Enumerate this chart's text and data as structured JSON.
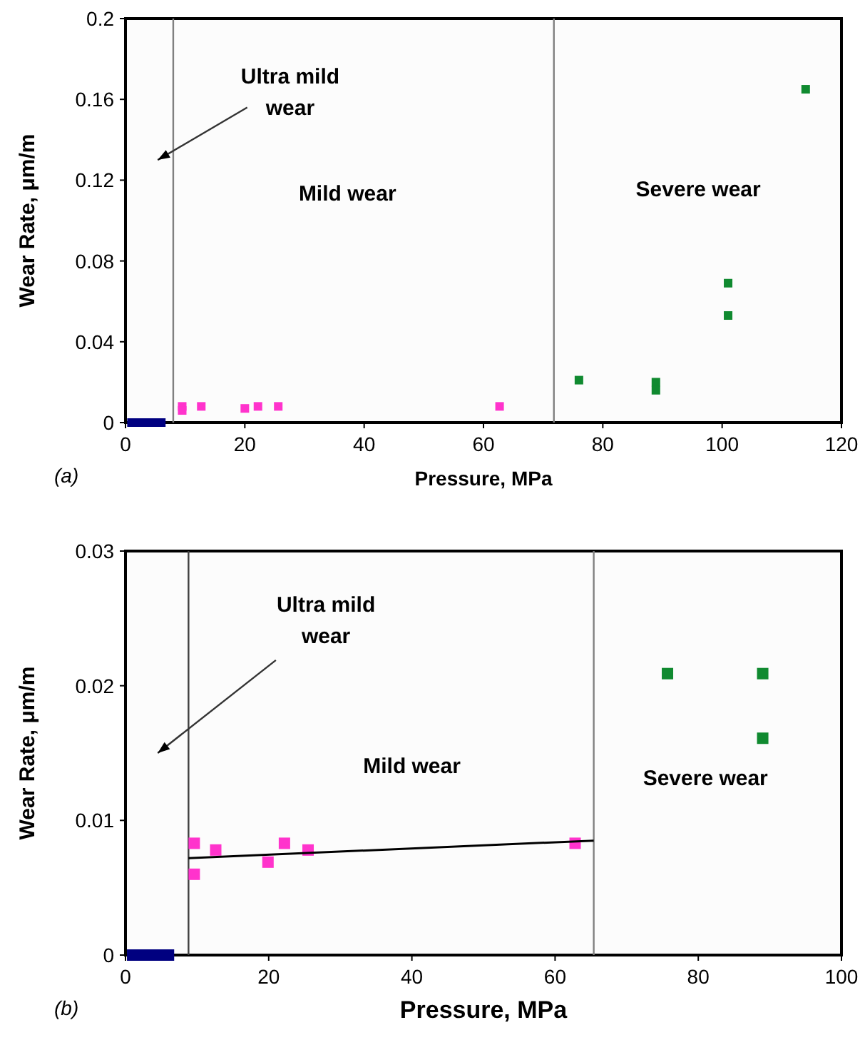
{
  "chart_data": [
    {
      "type": "scatter",
      "xlabel": "Pressure, MPa",
      "ylabel": "Wear Rate, μm/m",
      "xlim": [
        0,
        120
      ],
      "xticks": [
        0,
        20,
        40,
        60,
        80,
        100,
        120
      ],
      "ylim": [
        0,
        0.2
      ],
      "yticks": [
        0,
        0.04,
        0.08,
        0.12,
        0.16,
        0.2
      ],
      "marker": "square",
      "series": [
        {
          "color": "#000080",
          "x": [
            1,
            2,
            3,
            4,
            5,
            6
          ],
          "values": [
            0,
            0,
            0,
            0,
            0,
            0
          ]
        },
        {
          "color": "#ff33cc",
          "x": [
            9.5,
            9.5,
            12.7,
            20,
            22.2,
            25.6,
            62.7
          ],
          "values": [
            0.008,
            0.006,
            0.008,
            0.007,
            0.008,
            0.008,
            0.008
          ]
        },
        {
          "color": "#108a30",
          "x": [
            76,
            88.9,
            88.9,
            101,
            101,
            114
          ],
          "values": [
            0.021,
            0.02,
            0.016,
            0.069,
            0.053,
            0.165
          ]
        }
      ],
      "ref_lines": [
        {
          "axis": "x",
          "value": 8,
          "color": "#808080"
        },
        {
          "axis": "x",
          "value": 71.8,
          "color": "#808080"
        }
      ],
      "annotations": [
        "Ultra mild wear",
        "Mild wear",
        "Severe wear",
        "(a)"
      ]
    },
    {
      "type": "scatter",
      "xlabel": "Pressure, MPa",
      "ylabel": "Wear Rate, μm/m",
      "xlim": [
        0,
        100
      ],
      "xticks": [
        0,
        20,
        40,
        60,
        80,
        100
      ],
      "ylim": [
        0,
        0.03
      ],
      "yticks": [
        0,
        0.01,
        0.02,
        0.03
      ],
      "marker": "square",
      "series": [
        {
          "color": "#000080",
          "x": [
            1,
            2,
            3,
            4,
            5,
            6
          ],
          "values": [
            0,
            0,
            0,
            0,
            0,
            0
          ]
        },
        {
          "color": "#ff33cc",
          "x": [
            9.6,
            9.6,
            12.6,
            19.9,
            22.2,
            25.5,
            62.8
          ],
          "values": [
            0.0083,
            0.006,
            0.0078,
            0.0069,
            0.0083,
            0.0078,
            0.0083
          ]
        },
        {
          "color": "#108a30",
          "x": [
            75.7,
            89,
            89
          ],
          "values": [
            0.0209,
            0.0209,
            0.0161
          ]
        },
        {
          "type": "line",
          "marker": "none",
          "color": "#000000",
          "x": [
            8.8,
            65.4
          ],
          "values": [
            0.0072,
            0.0085
          ]
        }
      ],
      "ref_lines": [
        {
          "axis": "x",
          "value": 8.8,
          "color": "#404040"
        },
        {
          "axis": "x",
          "value": 65.4,
          "color": "#808080"
        }
      ],
      "annotations": [
        "Ultra mild wear",
        "Mild wear",
        "Severe wear",
        "(b)"
      ]
    }
  ]
}
